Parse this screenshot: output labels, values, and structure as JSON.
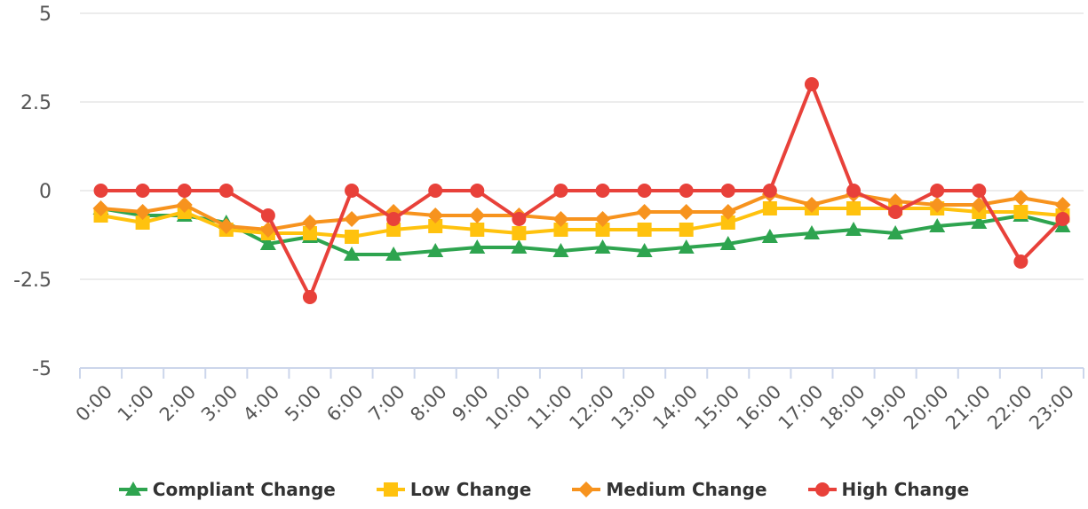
{
  "chart_data": {
    "type": "line",
    "categories": [
      "0:00",
      "1:00",
      "2:00",
      "3:00",
      "4:00",
      "5:00",
      "6:00",
      "7:00",
      "8:00",
      "9:00",
      "10:00",
      "11:00",
      "12:00",
      "13:00",
      "14:00",
      "15:00",
      "16:00",
      "17:00",
      "18:00",
      "19:00",
      "20:00",
      "21:00",
      "22:00",
      "23:00"
    ],
    "ylim": [
      -5,
      5
    ],
    "yticks": [
      "5",
      "2.5",
      "0",
      "-2.5",
      "-5"
    ],
    "grid": true,
    "legend_position": "bottom",
    "series": [
      {
        "name": "Compliant Change",
        "color": "#2ea44f",
        "marker": "triangle",
        "values": [
          -0.5,
          -0.7,
          -0.7,
          -0.9,
          -1.5,
          -1.3,
          -1.8,
          -1.8,
          -1.7,
          -1.6,
          -1.6,
          -1.7,
          -1.6,
          -1.7,
          -1.6,
          -1.5,
          -1.3,
          -1.2,
          -1.1,
          -1.2,
          -1.0,
          -0.9,
          -0.7,
          -1.0
        ]
      },
      {
        "name": "Low Change",
        "color": "#ffc20e",
        "marker": "square",
        "values": [
          -0.7,
          -0.9,
          -0.6,
          -1.1,
          -1.2,
          -1.2,
          -1.3,
          -1.1,
          -1.0,
          -1.1,
          -1.2,
          -1.1,
          -1.1,
          -1.1,
          -1.1,
          -0.9,
          -0.5,
          -0.5,
          -0.5,
          -0.5,
          -0.5,
          -0.6,
          -0.6,
          -0.7
        ]
      },
      {
        "name": "Medium Change",
        "color": "#f7931e",
        "marker": "diamond",
        "values": [
          -0.5,
          -0.6,
          -0.4,
          -1.0,
          -1.1,
          -0.9,
          -0.8,
          -0.6,
          -0.7,
          -0.7,
          -0.7,
          -0.8,
          -0.8,
          -0.6,
          -0.6,
          -0.6,
          -0.1,
          -0.4,
          -0.1,
          -0.3,
          -0.4,
          -0.4,
          -0.2,
          -0.4
        ]
      },
      {
        "name": "High Change",
        "color": "#e8413a",
        "marker": "circle",
        "values": [
          0,
          0,
          0,
          0,
          -0.7,
          -3,
          0,
          -0.8,
          0,
          0,
          -0.8,
          0,
          0,
          0,
          0,
          0,
          0,
          3,
          0,
          -0.6,
          0,
          0,
          -2,
          -0.8
        ]
      }
    ]
  }
}
